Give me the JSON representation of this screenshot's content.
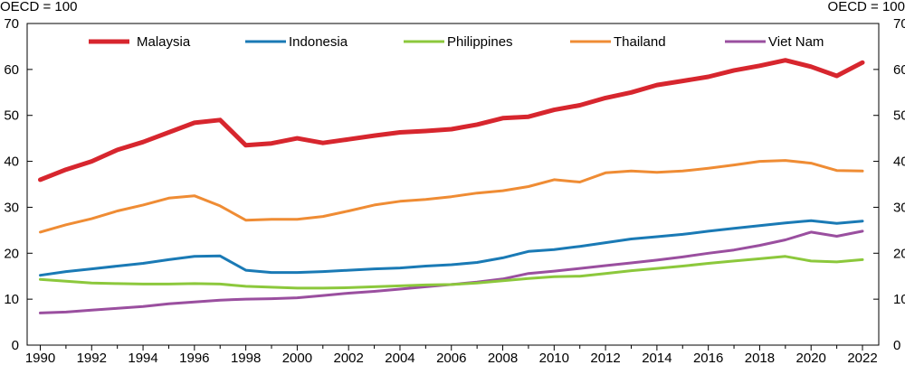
{
  "chart_data": {
    "type": "line",
    "title": "",
    "xlabel": "",
    "ylabel": "",
    "unit_left": "OECD = 100",
    "unit_right": "OECD = 100",
    "ylim": [
      0,
      70
    ],
    "yticks": [
      0,
      10,
      20,
      30,
      40,
      50,
      60,
      70
    ],
    "xlim": [
      1990,
      2022
    ],
    "xtick_labels": [
      "1990",
      "1992",
      "1994",
      "1996",
      "1998",
      "2000",
      "2002",
      "2004",
      "2006",
      "2008",
      "2010",
      "2012",
      "2014",
      "2016",
      "2018",
      "2020",
      "2022"
    ],
    "grid": false,
    "legend_position": "top",
    "x": [
      1990,
      1991,
      1992,
      1993,
      1994,
      1995,
      1996,
      1997,
      1998,
      1999,
      2000,
      2001,
      2002,
      2003,
      2004,
      2005,
      2006,
      2007,
      2008,
      2009,
      2010,
      2011,
      2012,
      2013,
      2014,
      2015,
      2016,
      2017,
      2018,
      2019,
      2020,
      2021,
      2022
    ],
    "series": [
      {
        "name": "Malaysia",
        "color": "#d7262e",
        "width": 5,
        "values": [
          36,
          38.2,
          40,
          42.5,
          44.2,
          46.3,
          48.4,
          49,
          43.5,
          43.9,
          45,
          44,
          44.8,
          45.6,
          46.3,
          46.6,
          47,
          48,
          49.4,
          49.7,
          51.2,
          52.2,
          53.8,
          55,
          56.6,
          57.5,
          58.4,
          59.8,
          60.8,
          62,
          60.6,
          58.6,
          61.5
        ]
      },
      {
        "name": "Indonesia",
        "color": "#1a7ab5",
        "width": 3,
        "values": [
          15.2,
          16,
          16.6,
          17.2,
          17.8,
          18.6,
          19.3,
          19.4,
          16.3,
          15.8,
          15.8,
          16,
          16.3,
          16.6,
          16.8,
          17.2,
          17.5,
          18,
          19,
          20.4,
          20.8,
          21.5,
          22.3,
          23.1,
          23.6,
          24.1,
          24.8,
          25.4,
          26,
          26.6,
          27.1,
          26.5,
          27
        ]
      },
      {
        "name": "Philippines",
        "color": "#8cc83c",
        "width": 3,
        "values": [
          14.3,
          13.9,
          13.5,
          13.4,
          13.3,
          13.3,
          13.4,
          13.3,
          12.8,
          12.6,
          12.4,
          12.4,
          12.5,
          12.7,
          12.9,
          13.1,
          13.2,
          13.5,
          14,
          14.5,
          14.9,
          15,
          15.6,
          16.2,
          16.7,
          17.2,
          17.8,
          18.3,
          18.8,
          19.3,
          18.3,
          18.1,
          18.6
        ]
      },
      {
        "name": "Thailand",
        "color": "#ef8c34",
        "width": 3,
        "values": [
          24.6,
          26.2,
          27.5,
          29.2,
          30.5,
          32,
          32.5,
          30.3,
          27.2,
          27.4,
          27.4,
          28,
          29.2,
          30.5,
          31.3,
          31.7,
          32.3,
          33.1,
          33.6,
          34.5,
          36,
          35.5,
          37.5,
          37.9,
          37.6,
          37.9,
          38.5,
          39.2,
          40,
          40.2,
          39.6,
          38,
          37.9
        ]
      },
      {
        "name": "Viet Nam",
        "color": "#9a4f9f",
        "width": 3,
        "values": [
          7,
          7.2,
          7.6,
          8,
          8.4,
          9,
          9.4,
          9.8,
          10,
          10.1,
          10.3,
          10.8,
          11.3,
          11.7,
          12.2,
          12.7,
          13.2,
          13.7,
          14.4,
          15.6,
          16.1,
          16.7,
          17.3,
          17.9,
          18.5,
          19.2,
          20,
          20.7,
          21.7,
          22.9,
          24.6,
          23.7,
          24.8
        ]
      }
    ]
  }
}
